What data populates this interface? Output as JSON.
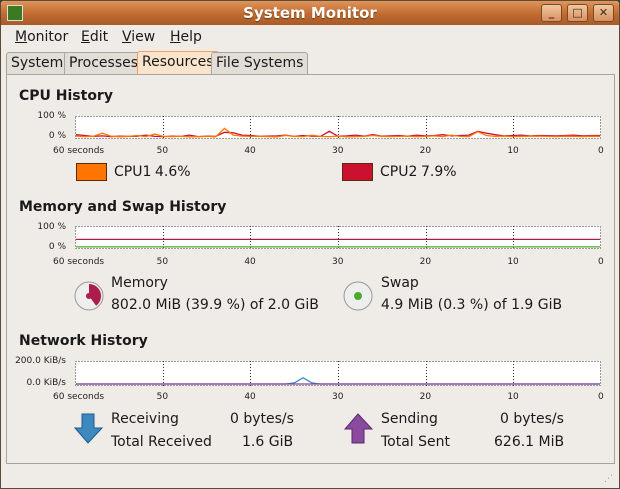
{
  "window": {
    "title": "System Monitor"
  },
  "menu": [
    {
      "label": "Monitor",
      "m": "M",
      "rest": "onitor"
    },
    {
      "label": "Edit",
      "m": "E",
      "rest": "dit"
    },
    {
      "label": "View",
      "m": "V",
      "rest": "iew"
    },
    {
      "label": "Help",
      "m": "H",
      "rest": "elp"
    }
  ],
  "tabs": [
    {
      "label": "System"
    },
    {
      "label": "Processes"
    },
    {
      "label": "Resources",
      "active": true
    },
    {
      "label": "File Systems"
    }
  ],
  "x_ticks": [
    "60 seconds",
    "50",
    "40",
    "30",
    "20",
    "10",
    "0"
  ],
  "cpu": {
    "heading": "CPU History",
    "y_max": "100 %",
    "y_min": "0 %",
    "cpu1": {
      "label": "CPU1",
      "value": "4.6%",
      "color": "#ff7500"
    },
    "cpu2": {
      "label": "CPU2",
      "value": "7.9%",
      "color": "#cc1030"
    },
    "cpu1_samples": [
      5,
      2,
      4,
      20,
      5,
      1,
      3,
      8,
      2,
      15,
      3,
      2,
      4,
      1,
      2,
      3,
      1,
      45,
      10,
      5,
      3,
      4,
      2,
      1,
      8,
      3,
      2,
      10,
      3,
      2,
      5,
      1,
      2,
      3,
      8,
      3,
      2,
      3,
      5,
      2,
      3,
      6,
      2,
      10,
      3,
      2,
      28,
      8,
      3,
      5,
      2,
      3,
      4,
      5,
      3,
      2,
      4,
      3,
      2,
      4,
      3
    ],
    "cpu2_samples": [
      12,
      8,
      3,
      6,
      2,
      5,
      3,
      4,
      10,
      3,
      2,
      5,
      3,
      10,
      2,
      4,
      3,
      25,
      22,
      10,
      8,
      5,
      4,
      6,
      10,
      3,
      8,
      5,
      3,
      30,
      4,
      6,
      10,
      5,
      12,
      4,
      6,
      8,
      5,
      10,
      6,
      8,
      12,
      6,
      8,
      10,
      30,
      20,
      12,
      6,
      8,
      10,
      6,
      8,
      7,
      6,
      8,
      10,
      6,
      8,
      8
    ]
  },
  "memory": {
    "heading": "Memory and Swap History",
    "y_max": "100 %",
    "y_min": "0 %",
    "mem": {
      "label": "Memory",
      "value": "802.0 MiB (39.9 %) of 2.0 GiB",
      "percent": 39.9,
      "color": "#ad1d4b"
    },
    "swap": {
      "label": "Swap",
      "value": "4.9 MiB (0.3 %) of 1.9 GiB",
      "percent": 0.3,
      "color": "#4caa2a"
    }
  },
  "network": {
    "heading": "Network History",
    "y_max": "200.0 KiB/s",
    "y_min": "0.0 KiB/s",
    "receiving_label": "Receiving",
    "receiving": "0 bytes/s",
    "total_received_label": "Total Received",
    "total_received": "1.6 GiB",
    "sending_label": "Sending",
    "sending": "0 bytes/s",
    "total_sent_label": "Total Sent",
    "total_sent": "626.1 MiB",
    "recv_color": "#3e88c0",
    "send_color": "#8a3c9a"
  }
}
